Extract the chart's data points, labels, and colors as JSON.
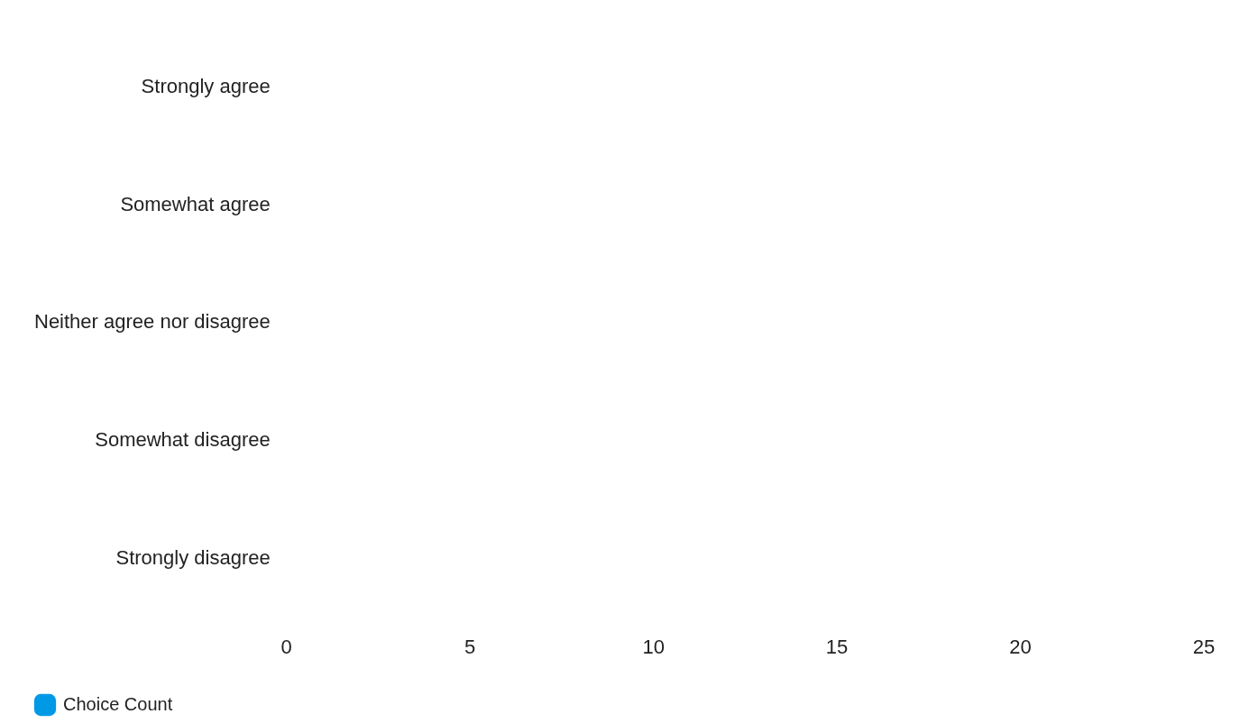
{
  "chart_data": {
    "type": "bar",
    "orientation": "horizontal",
    "categories": [
      "Strongly agree",
      "Somewhat agree",
      "Neither agree nor disagree",
      "Somewhat disagree",
      "Strongly disagree"
    ],
    "series": [
      {
        "name": "Choice Count",
        "color": "#0099e6",
        "values": [
          0,
          0,
          0,
          0,
          0
        ]
      }
    ],
    "xlim": [
      0,
      25
    ],
    "xticks": [
      0,
      5,
      10,
      15,
      20,
      25
    ],
    "grid": false,
    "legend": "bottom left"
  }
}
